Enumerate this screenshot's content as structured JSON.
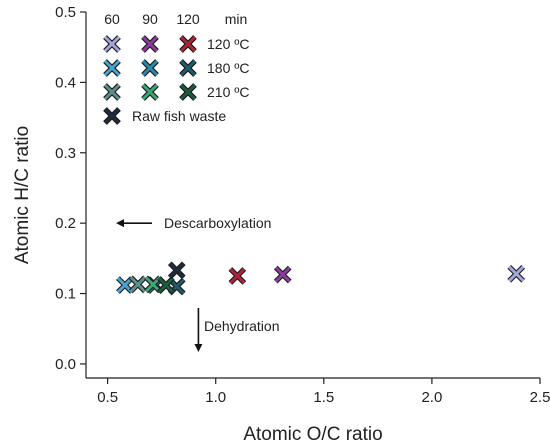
{
  "chart_data": {
    "type": "scatter",
    "xlabel": "Atomic O/C ratio",
    "ylabel": "Atomic H/C ratio",
    "xlim": [
      0.4,
      2.5
    ],
    "ylim": [
      -0.02,
      0.5
    ],
    "x_ticks": [
      "0.5",
      "1.0",
      "1.5",
      "2.0",
      "2.5"
    ],
    "y_ticks": [
      "0.0",
      "0.1",
      "0.2",
      "0.3",
      "0.4",
      "0.5"
    ],
    "legend": {
      "placement": "top-left",
      "time_header": [
        "60",
        "90",
        "120",
        "min"
      ],
      "row_labels": [
        "120 ºC",
        "180 ºC",
        "210 ºC"
      ],
      "raw_label": "Raw fish waste"
    },
    "marker_colors": {
      "120 ºC": [
        "#a3a6d6",
        "#8a3d9c",
        "#a8263a"
      ],
      "180 ºC": [
        "#4ba3d2",
        "#2c8aa8",
        "#1f5a6e"
      ],
      "210 ºC": [
        "#5e8f8c",
        "#3aa777",
        "#1e5a3e"
      ],
      "raw": "#1f2b3a"
    },
    "series": [
      {
        "name": "120 ºC",
        "points": [
          {
            "x": 2.39,
            "y": 0.128,
            "time": "60"
          },
          {
            "x": 1.31,
            "y": 0.127,
            "time": "90"
          },
          {
            "x": 1.1,
            "y": 0.125,
            "time": "120"
          }
        ]
      },
      {
        "name": "180 ºC",
        "points": [
          {
            "x": 0.58,
            "y": 0.112,
            "time": "60"
          },
          {
            "x": 0.72,
            "y": 0.112,
            "time": "90"
          },
          {
            "x": 0.82,
            "y": 0.11,
            "time": "120"
          }
        ]
      },
      {
        "name": "210 ºC",
        "points": [
          {
            "x": 0.64,
            "y": 0.113,
            "time": "60"
          },
          {
            "x": 0.71,
            "y": 0.113,
            "time": "90"
          },
          {
            "x": 0.77,
            "y": 0.112,
            "time": "120"
          }
        ]
      },
      {
        "name": "Raw fish waste",
        "points": [
          {
            "x": 0.82,
            "y": 0.133
          }
        ]
      }
    ],
    "annotations": [
      {
        "text": "Descarboxylation",
        "arrow": "left",
        "x": 0.7,
        "y": 0.2
      },
      {
        "text": "Dehydration",
        "arrow": "down",
        "x": 0.92,
        "y": 0.06
      }
    ],
    "grid": false
  }
}
